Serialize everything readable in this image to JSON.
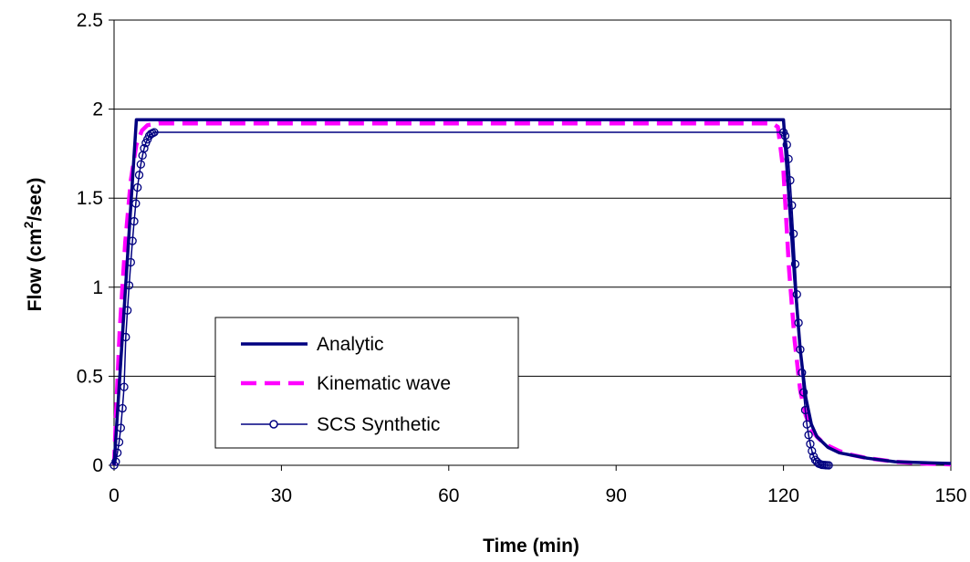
{
  "chart_data": {
    "type": "line",
    "xlabel": "Time (min)",
    "ylabel": {
      "prefix": "Flow (cm",
      "sup": "2",
      "suffix": "/sec)"
    },
    "xlim": [
      0,
      150
    ],
    "ylim": [
      0,
      2.5
    ],
    "xticks": [
      "0",
      "30",
      "60",
      "90",
      "120",
      "150"
    ],
    "yticks": [
      "0",
      "0.5",
      "1",
      "1.5",
      "2",
      "2.5"
    ],
    "grid": "horizontal",
    "legend_position": "lower-left",
    "series": [
      {
        "name": "Analytic",
        "color": "#000080",
        "style": "solid",
        "x": [
          0,
          4,
          120,
          121,
          122,
          123,
          124,
          125,
          126,
          128,
          130,
          135,
          140,
          150
        ],
        "y": [
          0,
          1.94,
          1.94,
          1.5,
          1.05,
          0.65,
          0.38,
          0.23,
          0.16,
          0.1,
          0.07,
          0.04,
          0.02,
          0.01
        ]
      },
      {
        "name": "Kinematic wave",
        "color": "#FF00FF",
        "style": "dashed",
        "x": [
          0,
          0.5,
          1,
          2,
          3,
          4,
          5,
          6,
          8,
          118,
          119,
          120,
          121,
          122,
          123,
          124,
          125,
          126,
          127,
          128,
          130,
          132,
          135,
          140,
          145,
          150
        ],
        "y": [
          0,
          0.4,
          0.75,
          1.25,
          1.6,
          1.8,
          1.88,
          1.91,
          1.92,
          1.92,
          1.9,
          1.65,
          1.1,
          0.7,
          0.42,
          0.28,
          0.2,
          0.16,
          0.13,
          0.11,
          0.08,
          0.06,
          0.04,
          0.02,
          0.01,
          0.005
        ]
      },
      {
        "name": "SCS Synthetic",
        "color": "#000080",
        "style": "solid-circles",
        "x": [
          0,
          0.3,
          0.6,
          0.9,
          1.2,
          1.5,
          1.8,
          2.1,
          2.4,
          2.7,
          3.0,
          3.3,
          3.6,
          3.9,
          4.2,
          4.5,
          4.8,
          5.1,
          5.4,
          5.7,
          6.0,
          6.3,
          6.6,
          6.9,
          7.2,
          120,
          120.3,
          120.6,
          120.9,
          121.2,
          121.5,
          121.8,
          122.1,
          122.4,
          122.7,
          123.0,
          123.3,
          123.6,
          123.9,
          124.2,
          124.5,
          124.8,
          125.1,
          125.4,
          125.7,
          126.0,
          126.3,
          126.6,
          126.9,
          127.2,
          127.5,
          127.8,
          128.1
        ],
        "y": [
          0,
          0.02,
          0.07,
          0.13,
          0.21,
          0.32,
          0.44,
          0.72,
          0.87,
          1.01,
          1.14,
          1.26,
          1.37,
          1.47,
          1.56,
          1.63,
          1.69,
          1.74,
          1.78,
          1.81,
          1.83,
          1.85,
          1.86,
          1.865,
          1.87,
          1.87,
          1.85,
          1.8,
          1.72,
          1.6,
          1.46,
          1.3,
          1.13,
          0.96,
          0.8,
          0.65,
          0.52,
          0.41,
          0.31,
          0.23,
          0.17,
          0.12,
          0.08,
          0.05,
          0.03,
          0.02,
          0.01,
          0.006,
          0.003,
          0.002,
          0.001,
          0.0005,
          0
        ]
      }
    ]
  }
}
